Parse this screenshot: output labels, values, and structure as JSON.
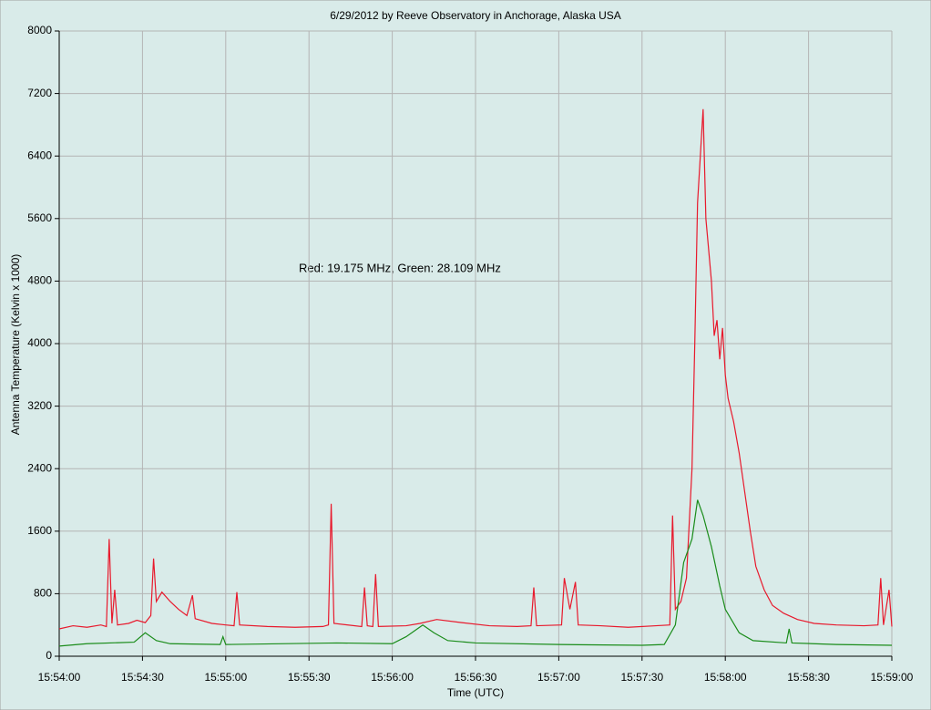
{
  "chart_data": {
    "type": "line",
    "title": "6/29/2012  by  Reeve Observatory  in  Anchorage, Alaska  USA",
    "annotation": "Red: 19.175 MHz, Green: 28.109 MHz",
    "x_label": "Time (UTC)",
    "y_label": "Antenna Temperature (Kelvin x 1000)",
    "xlim": [
      "15:54:00",
      "15:59:00"
    ],
    "xticks": [
      "15:54:00",
      "15:54:30",
      "15:55:00",
      "15:55:30",
      "15:56:00",
      "15:56:30",
      "15:57:00",
      "15:57:30",
      "15:58:00",
      "15:58:30",
      "15:59:00"
    ],
    "ylim": [
      0,
      8000
    ],
    "yticks": [
      0,
      800,
      1600,
      2400,
      3200,
      4000,
      4800,
      5600,
      6400,
      7200,
      8000
    ],
    "grid": true,
    "series": [
      {
        "color": "#e8192c",
        "x": [
          "15:54:00",
          "15:54:05",
          "15:54:10",
          "15:54:15",
          "15:54:17",
          "15:54:18",
          "15:54:19",
          "15:54:20",
          "15:54:21",
          "15:54:25",
          "15:54:28",
          "15:54:31",
          "15:54:33",
          "15:54:34",
          "15:54:35",
          "15:54:37",
          "15:54:40",
          "15:54:43",
          "15:54:46",
          "15:54:48",
          "15:54:49",
          "15:54:55",
          "15:55:00",
          "15:55:03",
          "15:55:04",
          "15:55:05",
          "15:55:15",
          "15:55:25",
          "15:55:35",
          "15:55:37",
          "15:55:38",
          "15:55:39",
          "15:55:49",
          "15:55:50",
          "15:55:51",
          "15:55:53",
          "15:55:54",
          "15:55:55",
          "15:56:05",
          "15:56:10",
          "15:56:16",
          "15:56:25",
          "15:56:35",
          "15:56:45",
          "15:56:50",
          "15:56:51",
          "15:56:52",
          "15:57:01",
          "15:57:02",
          "15:57:04",
          "15:57:06",
          "15:57:07",
          "15:57:15",
          "15:57:25",
          "15:57:35",
          "15:57:40",
          "15:57:41",
          "15:57:42",
          "15:57:44",
          "15:57:46",
          "15:57:48",
          "15:57:49",
          "15:57:50",
          "15:57:51",
          "15:57:52",
          "15:57:53",
          "15:57:54",
          "15:57:55",
          "15:57:56",
          "15:57:57",
          "15:57:58",
          "15:57:59",
          "15:58:00",
          "15:58:01",
          "15:58:03",
          "15:58:05",
          "15:58:07",
          "15:58:09",
          "15:58:11",
          "15:58:14",
          "15:58:17",
          "15:58:21",
          "15:58:26",
          "15:58:32",
          "15:58:40",
          "15:58:50",
          "15:58:55",
          "15:58:56",
          "15:58:57",
          "15:58:59",
          "15:59:00"
        ],
        "values": [
          350,
          390,
          370,
          400,
          380,
          1500,
          420,
          850,
          400,
          420,
          460,
          430,
          520,
          1250,
          700,
          820,
          700,
          600,
          520,
          780,
          480,
          420,
          400,
          390,
          820,
          400,
          380,
          370,
          380,
          400,
          1950,
          420,
          380,
          880,
          390,
          380,
          1050,
          380,
          390,
          420,
          470,
          430,
          390,
          380,
          390,
          880,
          390,
          400,
          1000,
          600,
          950,
          400,
          390,
          370,
          390,
          400,
          1800,
          600,
          700,
          1000,
          2400,
          4000,
          5800,
          6400,
          7000,
          5600,
          5200,
          4800,
          4100,
          4300,
          3800,
          4200,
          3600,
          3300,
          3000,
          2600,
          2100,
          1600,
          1150,
          850,
          650,
          550,
          470,
          420,
          400,
          390,
          400,
          1000,
          400,
          850,
          380
        ]
      },
      {
        "color": "#1a8c1a",
        "x": [
          "15:54:00",
          "15:54:10",
          "15:54:27",
          "15:54:31",
          "15:54:35",
          "15:54:40",
          "15:54:58",
          "15:54:59",
          "15:55:00",
          "15:55:40",
          "15:56:00",
          "15:56:05",
          "15:56:11",
          "15:56:15",
          "15:56:20",
          "15:56:30",
          "15:57:00",
          "15:57:30",
          "15:57:38",
          "15:57:42",
          "15:57:45",
          "15:57:48",
          "15:57:50",
          "15:57:52",
          "15:57:55",
          "15:57:58",
          "15:58:00",
          "15:58:05",
          "15:58:10",
          "15:58:22",
          "15:58:23",
          "15:58:24",
          "15:58:40",
          "15:59:00"
        ],
        "values": [
          130,
          160,
          180,
          300,
          200,
          160,
          150,
          250,
          150,
          170,
          160,
          250,
          400,
          300,
          200,
          170,
          150,
          140,
          150,
          400,
          1200,
          1500,
          2000,
          1800,
          1400,
          900,
          600,
          300,
          200,
          170,
          350,
          170,
          150,
          140
        ]
      }
    ]
  }
}
